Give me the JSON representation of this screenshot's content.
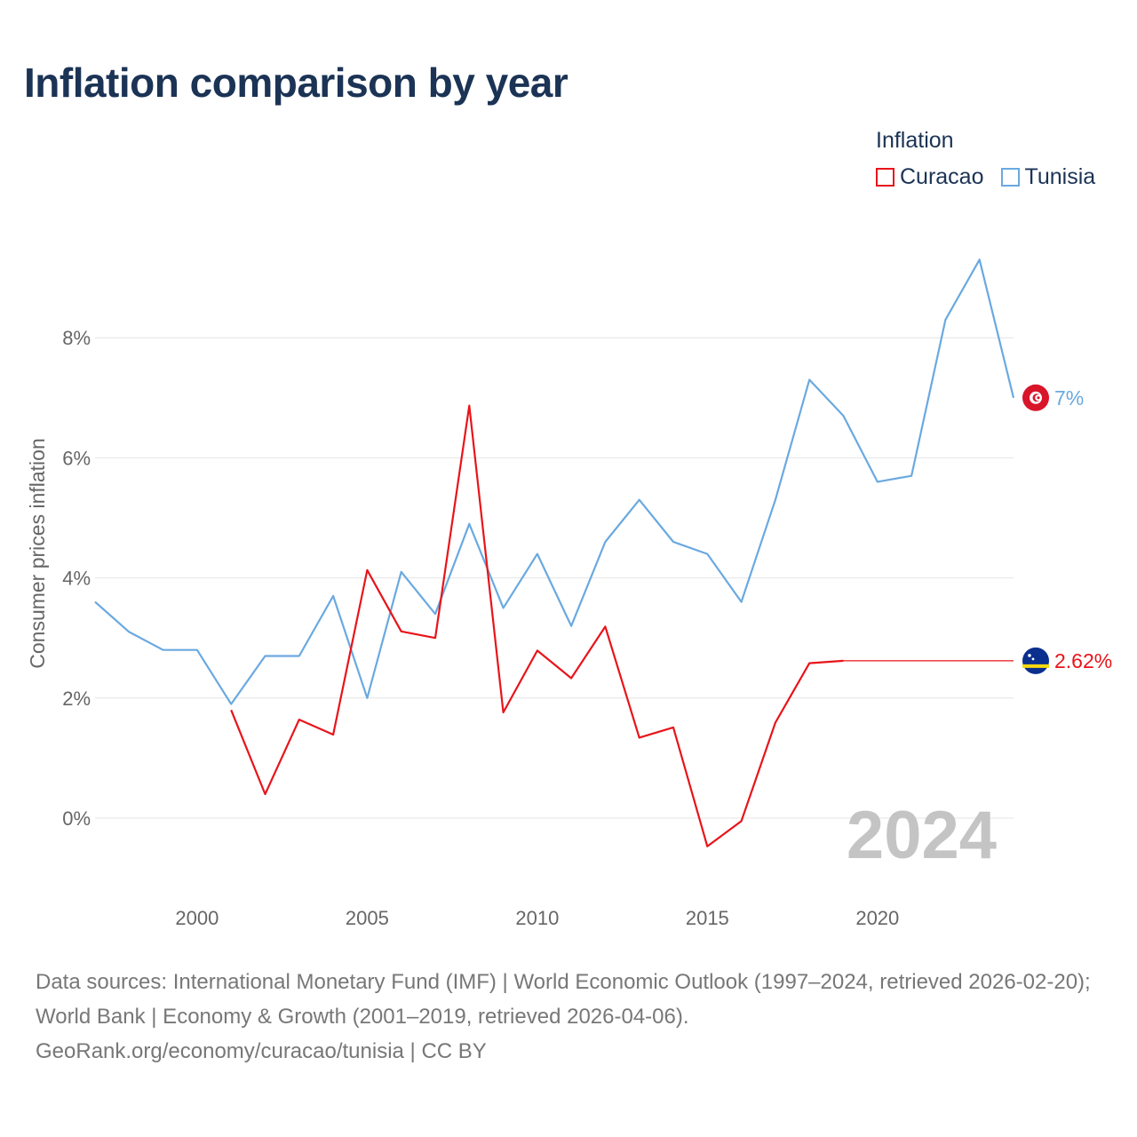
{
  "title": "Inflation comparison by year",
  "legend": {
    "title": "Inflation",
    "items": [
      {
        "name": "Curacao",
        "color": "#e8141a"
      },
      {
        "name": "Tunisia",
        "color": "#6aa9e0"
      }
    ]
  },
  "footer": {
    "sources": "Data sources: International Monetary Fund (IMF) | World Economic Outlook (1997–2024, retrieved 2026-02-20); World Bank | Economy & Growth (2001–2019, retrieved 2026-04-06).",
    "credit": "GeoRank.org/economy/curacao/tunisia | CC BY"
  },
  "chart_data": {
    "type": "line",
    "title": "Inflation comparison by year",
    "xlabel": "",
    "ylabel": "Consumer prices inflation",
    "xlim": [
      1997,
      2024
    ],
    "ylim": [
      -1.2,
      9.6
    ],
    "x_ticks": [
      2000,
      2005,
      2010,
      2015,
      2020
    ],
    "y_ticks": [
      0,
      2,
      4,
      6,
      8
    ],
    "y_tick_labels": [
      "0%",
      "2%",
      "4%",
      "6%",
      "8%"
    ],
    "grid": true,
    "legend_position": "top-right",
    "watermark_year": "2024",
    "series": [
      {
        "name": "Tunisia",
        "color": "#6aa9e0",
        "end_label": "7%",
        "flag": "tunisia-flag-icon",
        "x": [
          1997,
          1998,
          1999,
          2000,
          2001,
          2002,
          2003,
          2004,
          2005,
          2006,
          2007,
          2008,
          2009,
          2010,
          2011,
          2012,
          2013,
          2014,
          2015,
          2016,
          2017,
          2018,
          2019,
          2020,
          2021,
          2022,
          2023,
          2024
        ],
        "values": [
          3.6,
          3.1,
          2.8,
          2.8,
          1.9,
          2.7,
          2.7,
          3.7,
          2.0,
          4.1,
          3.4,
          4.9,
          3.5,
          4.4,
          3.2,
          4.6,
          5.3,
          4.6,
          4.4,
          3.6,
          5.3,
          7.3,
          6.7,
          5.6,
          5.7,
          8.3,
          9.3,
          7.0
        ]
      },
      {
        "name": "Curacao",
        "color": "#e8141a",
        "end_label": "2.62%",
        "flag": "curacao-flag-icon",
        "x": [
          2001,
          2002,
          2003,
          2004,
          2005,
          2006,
          2007,
          2008,
          2009,
          2010,
          2011,
          2012,
          2013,
          2014,
          2015,
          2016,
          2017,
          2018,
          2019
        ],
        "values": [
          1.8,
          0.4,
          1.64,
          1.39,
          4.13,
          3.11,
          3.0,
          6.87,
          1.76,
          2.79,
          2.33,
          3.19,
          1.34,
          1.51,
          -0.47,
          -0.05,
          1.59,
          2.58,
          2.62
        ],
        "extend_to": 2024
      }
    ]
  }
}
